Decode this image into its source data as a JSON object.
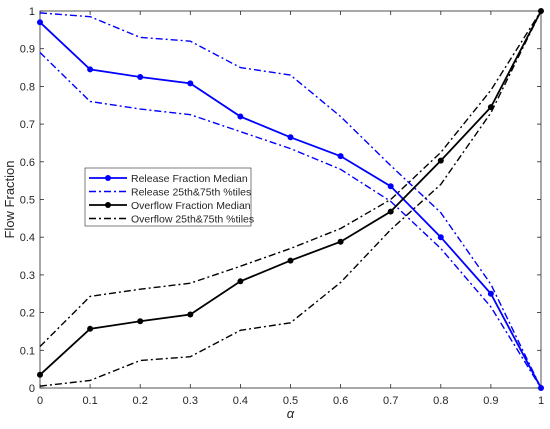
{
  "chart_data": {
    "type": "line",
    "xlabel": "α",
    "ylabel": "Flow Fraction",
    "xlim": [
      0,
      1
    ],
    "ylim": [
      0,
      1
    ],
    "xticks": [
      "0",
      "0.1",
      "0.2",
      "0.3",
      "0.4",
      "0.5",
      "0.6",
      "0.7",
      "0.8",
      "0.9",
      "1"
    ],
    "yticks": [
      "0",
      "0.1",
      "0.2",
      "0.3",
      "0.4",
      "0.5",
      "0.6",
      "0.7",
      "0.8",
      "0.9",
      "1"
    ],
    "grid": false,
    "legend_position": "center-left",
    "x": [
      0,
      0.1,
      0.2,
      0.3,
      0.4,
      0.5,
      0.6,
      0.7,
      0.8,
      0.9,
      1
    ],
    "series": [
      {
        "name": "Release Fraction Median",
        "color": "#0000ff",
        "style": "solid-marker",
        "values": [
          0.97,
          0.845,
          0.825,
          0.808,
          0.72,
          0.665,
          0.615,
          0.535,
          0.4,
          0.25,
          0.0
        ]
      },
      {
        "name": "Release 25th&75th %tiles",
        "color": "#0000ff",
        "style": "dashdot",
        "values": [
          0.995,
          0.985,
          0.93,
          0.92,
          0.85,
          0.83,
          0.72,
          0.59,
          0.465,
          0.275,
          0.0
        ]
      },
      {
        "name": "",
        "color": "#0000ff",
        "style": "dashdot",
        "legend": false,
        "values": [
          0.89,
          0.76,
          0.74,
          0.725,
          0.68,
          0.635,
          0.58,
          0.495,
          0.37,
          0.215,
          0.0
        ]
      },
      {
        "name": "Overflow Fraction Median",
        "color": "#000000",
        "style": "solid-marker",
        "values": [
          0.035,
          0.157,
          0.177,
          0.195,
          0.283,
          0.338,
          0.388,
          0.468,
          0.603,
          0.745,
          1.0
        ]
      },
      {
        "name": "Overflow 25th&75th %tiles",
        "color": "#000000",
        "style": "dashdot",
        "values": [
          0.11,
          0.243,
          0.262,
          0.278,
          0.323,
          0.37,
          0.423,
          0.5,
          0.625,
          0.79,
          1.0
        ]
      },
      {
        "name": "",
        "color": "#000000",
        "style": "dashdot",
        "legend": false,
        "values": [
          0.005,
          0.02,
          0.073,
          0.083,
          0.153,
          0.173,
          0.28,
          0.42,
          0.54,
          0.73,
          1.0
        ]
      }
    ]
  }
}
